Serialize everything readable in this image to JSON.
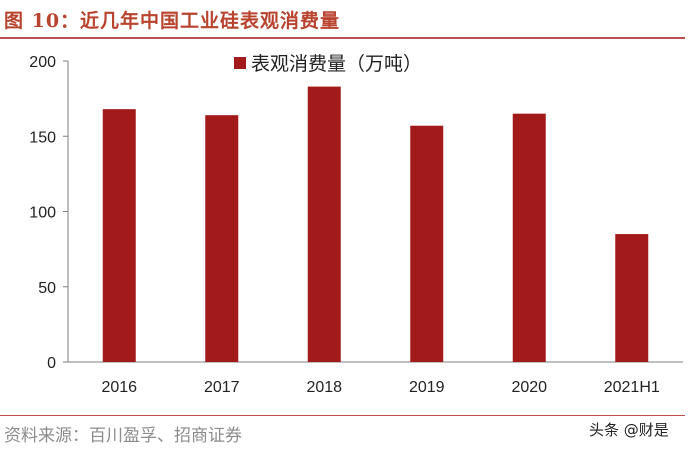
{
  "figure": {
    "title": "图 10：近几年中国工业硅表观消费量",
    "source": "资料来源：百川盈孚、招商证券",
    "watermark": "头条 @财是"
  },
  "colors": {
    "bar": "#a31a1a",
    "accent": "#c0504d"
  },
  "chart_data": {
    "type": "bar",
    "categories": [
      "2016",
      "2017",
      "2018",
      "2019",
      "2020",
      "2021H1"
    ],
    "series": [
      {
        "name": "表观消费量（万吨）",
        "values": [
          168,
          164,
          183,
          157,
          165,
          85
        ]
      }
    ],
    "ylim": [
      0,
      200
    ],
    "yticks": [
      0,
      50,
      100,
      150,
      200
    ],
    "xlabel": "",
    "ylabel": "",
    "grid": false,
    "legend": "top-center"
  }
}
